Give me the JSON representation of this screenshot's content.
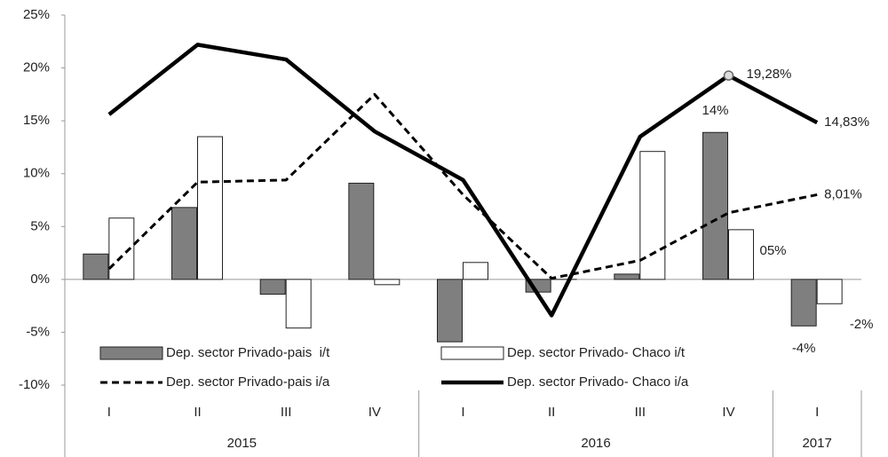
{
  "chart_data": {
    "type": "bar-line",
    "categories": [
      "I",
      "II",
      "III",
      "IV",
      "I",
      "II",
      "III",
      "IV",
      "I"
    ],
    "groups": [
      {
        "label": "2015",
        "span": 4
      },
      {
        "label": "2016",
        "span": 4
      },
      {
        "label": "2017",
        "span": 1
      }
    ],
    "ylim": [
      -10,
      25
    ],
    "yticks": [
      {
        "value": -10,
        "label": "-10%"
      },
      {
        "value": -5,
        "label": "-5%"
      },
      {
        "value": 0,
        "label": "0%"
      },
      {
        "value": 5,
        "label": "5%"
      },
      {
        "value": 10,
        "label": "10%"
      },
      {
        "value": 15,
        "label": "15%"
      },
      {
        "value": 20,
        "label": "20%"
      },
      {
        "value": 25,
        "label": "25%"
      }
    ],
    "series": [
      {
        "name": "Dep. sector Privado-pais  i/t",
        "kind": "bar",
        "color": "#7f7f7f",
        "values": [
          2.4,
          6.8,
          -1.4,
          9.1,
          -5.9,
          -1.2,
          0.5,
          13.9,
          -4.4
        ],
        "value_labels": [
          null,
          null,
          null,
          null,
          null,
          null,
          null,
          "14%",
          "-4%"
        ]
      },
      {
        "name": "Dep. sector Privado- Chaco i/t",
        "kind": "bar",
        "color": "#ffffff",
        "values": [
          5.8,
          13.5,
          -4.6,
          -0.5,
          1.6,
          0,
          12.1,
          4.7,
          -2.3
        ],
        "value_labels": [
          null,
          null,
          null,
          null,
          null,
          null,
          null,
          "05%",
          "-2%"
        ]
      },
      {
        "name": "Dep. sector Privado-pais i/a",
        "kind": "line",
        "dash": true,
        "color": "#000000",
        "values": [
          1.0,
          9.2,
          9.4,
          17.5,
          8.0,
          0.1,
          1.8,
          6.3,
          8.01
        ],
        "value_labels": [
          null,
          null,
          null,
          null,
          null,
          null,
          null,
          null,
          "8,01%"
        ]
      },
      {
        "name": "Dep. sector Privado- Chaco i/a",
        "kind": "line",
        "dash": false,
        "color": "#000000",
        "values": [
          15.6,
          22.2,
          20.8,
          14.0,
          9.4,
          -3.4,
          13.5,
          19.28,
          14.83
        ],
        "value_labels": [
          null,
          null,
          null,
          null,
          null,
          null,
          null,
          "19,28%",
          "14,83%"
        ]
      }
    ]
  }
}
